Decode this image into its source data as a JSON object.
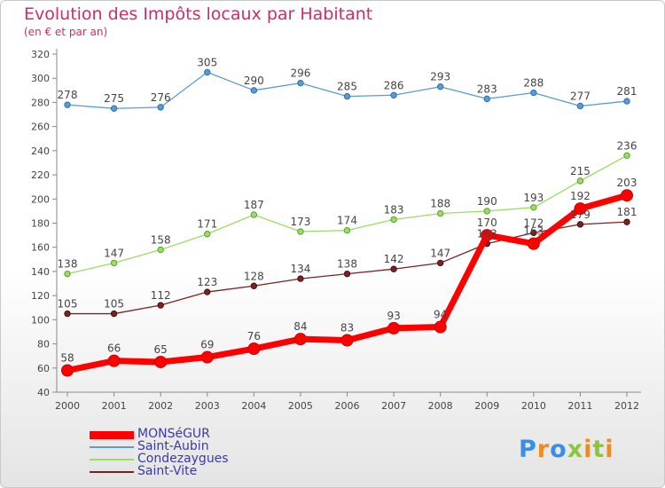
{
  "title": "Evolution des Impôts locaux par Habitant",
  "subtitle": "(en € et par an)",
  "brand": "Proxiti",
  "chart_data": {
    "type": "line",
    "title": "Evolution des Impôts locaux par Habitant",
    "subtitle": "(en € et par an)",
    "xlabel": "",
    "ylabel": "",
    "ylim": [
      40,
      320
    ],
    "ytick_step": 20,
    "categories": [
      "2000",
      "2001",
      "2002",
      "2003",
      "2004",
      "2005",
      "2006",
      "2007",
      "2008",
      "2009",
      "2010",
      "2011",
      "2012"
    ],
    "series": [
      {
        "name": "MONSéGUR",
        "color": "#ff0000",
        "values": [
          58,
          66,
          65,
          69,
          76,
          84,
          83,
          93,
          94,
          170,
          163,
          192,
          203
        ],
        "labels": [
          "58",
          "66",
          "65",
          "69",
          "76",
          "84",
          "83",
          "93",
          "94",
          "170",
          "163",
          "192",
          "203"
        ]
      },
      {
        "name": "Saint-Aubin",
        "color": "#5b9bd5",
        "values": [
          278,
          275,
          276,
          305,
          290,
          296,
          285,
          286,
          293,
          283,
          288,
          277,
          281
        ],
        "labels": [
          "278",
          "275",
          "276",
          "305",
          "290",
          "296",
          "285",
          "286",
          "293",
          "283",
          "288",
          "277",
          "281"
        ]
      },
      {
        "name": "Condezaygues",
        "color": "#99dd66",
        "values": [
          138,
          147,
          158,
          171,
          187,
          173,
          174,
          183,
          188,
          190,
          193,
          215,
          236
        ],
        "labels": [
          "138",
          "147",
          "158",
          "171",
          "187",
          "173",
          "174",
          "183",
          "188",
          "190",
          "193",
          "215",
          "236"
        ]
      },
      {
        "name": "Saint-Vite",
        "color": "#7a2222",
        "values": [
          105,
          105,
          112,
          123,
          128,
          134,
          138,
          142,
          147,
          163,
          172,
          179,
          181
        ],
        "labels": [
          "105",
          "105",
          "112",
          "123",
          "128",
          "134",
          "138",
          "142",
          "147",
          "163",
          "172",
          "179",
          "181"
        ]
      }
    ],
    "legend": "bottom-left",
    "grid": false
  }
}
